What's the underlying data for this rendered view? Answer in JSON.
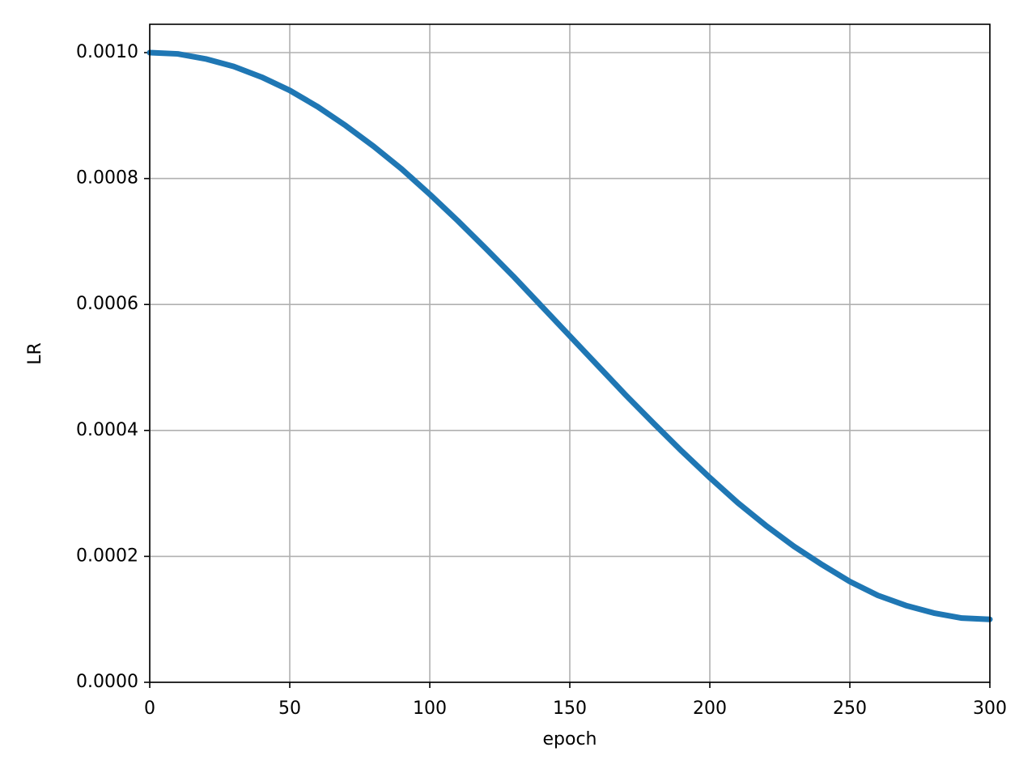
{
  "chart_data": {
    "type": "line",
    "x_label": "epoch",
    "y_label": "LR",
    "x": [
      0,
      10,
      20,
      30,
      40,
      50,
      60,
      70,
      80,
      90,
      100,
      110,
      120,
      130,
      140,
      150,
      160,
      170,
      180,
      190,
      200,
      210,
      220,
      230,
      240,
      250,
      260,
      270,
      280,
      290,
      300
    ],
    "series": [
      {
        "color": "#1f77b4",
        "values": [
          0.001,
          0.000998,
          0.00099,
          0.000978,
          0.000961,
          0.00094,
          0.000914,
          0.000884,
          0.000851,
          0.000815,
          0.000775,
          0.000733,
          0.000689,
          0.000644,
          0.000597,
          0.00055,
          0.000503,
          0.000456,
          0.000411,
          0.000367,
          0.000325,
          0.000285,
          0.000249,
          0.000216,
          0.000187,
          0.00016,
          0.000138,
          0.000122,
          0.00011,
          0.000102,
          0.0001
        ]
      }
    ],
    "xlim": [
      0,
      300
    ],
    "ylim": [
      0,
      0.001045
    ],
    "xticks": [
      0,
      50,
      100,
      150,
      200,
      250,
      300
    ],
    "yticks": [
      {
        "value": 0,
        "label": "0.0000"
      },
      {
        "value": 0.0002,
        "label": "0.0002"
      },
      {
        "value": 0.0004,
        "label": "0.0004"
      },
      {
        "value": 0.0006,
        "label": "0.0006"
      },
      {
        "value": 0.0008,
        "label": "0.0008"
      },
      {
        "value": 0.001,
        "label": "0.0010"
      }
    ],
    "grid": true
  }
}
